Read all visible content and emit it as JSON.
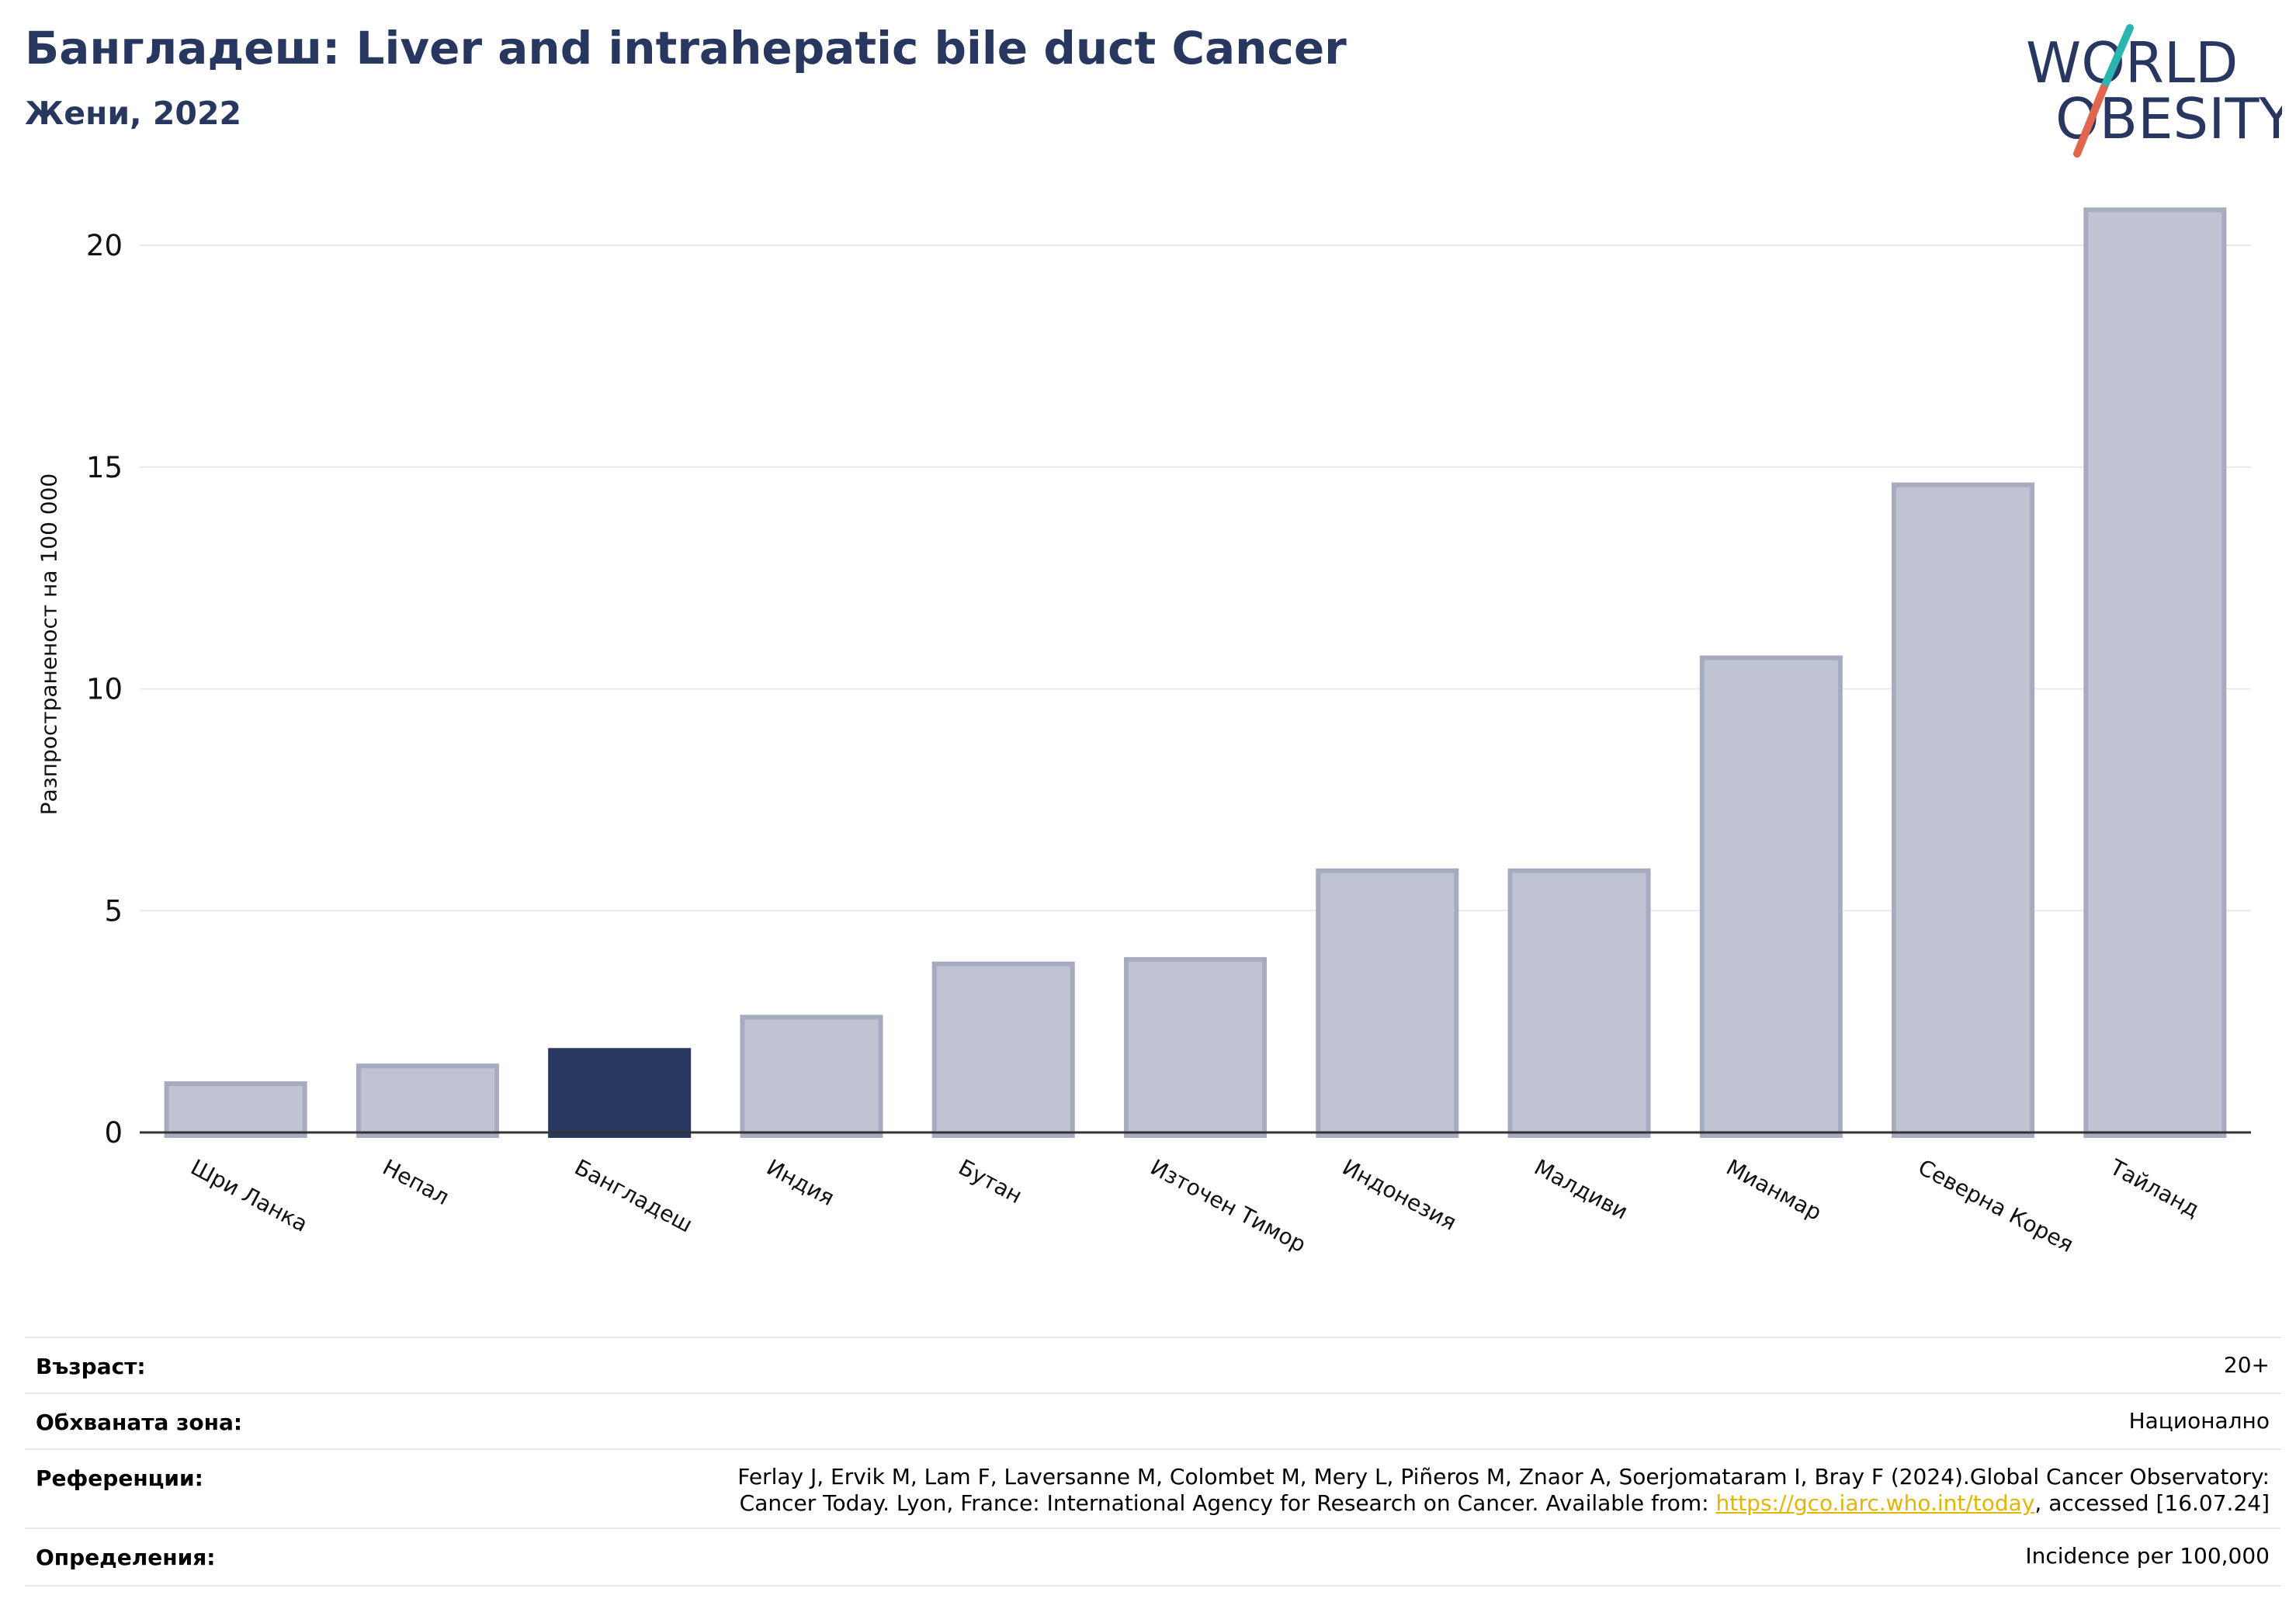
{
  "header": {
    "title": "Бангладеш: Liver and intrahepatic bile duct Cancer",
    "subtitle": "Жени, 2022"
  },
  "logo": {
    "line1": "WORLD",
    "line2": "OBESITY",
    "colors": {
      "text": "#283760",
      "slash_top": "#2bb5b0",
      "slash_bottom": "#e2654e"
    }
  },
  "chart_data": {
    "type": "bar",
    "title": "Бангладеш: Liver and intrahepatic bile duct Cancer",
    "subtitle": "Жени, 2022",
    "ylabel": "Разпространеност  на 100 000",
    "xlabel": "",
    "ylim": [
      0,
      21.5
    ],
    "yticks": [
      0,
      5,
      10,
      15,
      20
    ],
    "grid": true,
    "categories": [
      "Шри Ланка",
      "Непал",
      "Бангладеш",
      "Индия",
      "Бутан",
      "Източен Тимор",
      "Индонезия",
      "Малдиви",
      "Мианмар",
      "Северна Корея",
      "Тайланд"
    ],
    "values": [
      1.1,
      1.5,
      1.85,
      2.6,
      3.8,
      3.9,
      5.9,
      5.9,
      10.7,
      14.6,
      20.8
    ],
    "highlight": "Бангладеш",
    "colors": {
      "bar": "#c0c4d2",
      "bar_edge": "#a6abbf",
      "highlight": "#283760",
      "grid": "#e8e9ef",
      "axis": "#333333"
    }
  },
  "info": {
    "age_label": "Възраст:",
    "age_value": "20+",
    "area_label": "Обхваната зона:",
    "area_value": "Национално",
    "ref_label": "Референции:",
    "ref_line1": "Ferlay J, Ervik M, Lam F, Laversanne M, Colombet M, Mery L, Piñeros M, Znaor A, Soerjomataram I, Bray F (2024).Global Cancer Observatory:",
    "ref_line2_pre": "Cancer Today. Lyon, France: International Agency for Research on Cancer. Available from: ",
    "ref_link": "https://gco.iarc.who.int/today",
    "ref_line2_post": ", accessed [16.07.24]",
    "def_label": "Определения:",
    "def_value": "Incidence per 100,000"
  }
}
